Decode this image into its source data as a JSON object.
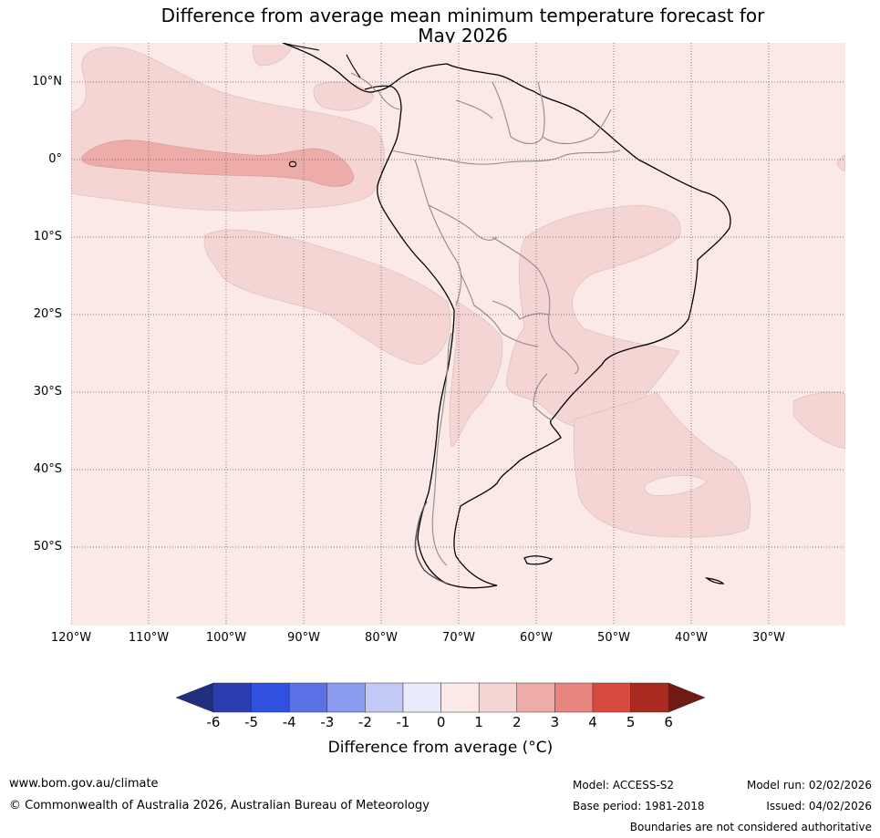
{
  "title": {
    "line1": "Difference from average mean minimum temperature forecast for",
    "line2": "May 2026"
  },
  "map": {
    "lat_labels": [
      "10°N",
      "0°",
      "10°S",
      "20°S",
      "30°S",
      "40°S",
      "50°S"
    ],
    "lon_labels": [
      "120°W",
      "110°W",
      "100°W",
      "90°W",
      "80°W",
      "70°W",
      "60°W",
      "50°W",
      "40°W",
      "30°W"
    ],
    "anomaly_bands": [
      {
        "range_c": "0 to 1",
        "color": "#fbe9e8"
      },
      {
        "range_c": "1 to 2",
        "color": "#f4d5d3"
      },
      {
        "range_c": "2 to 3",
        "color": "#eeaca9"
      }
    ]
  },
  "colorbar": {
    "ticks": [
      "-6",
      "-5",
      "-4",
      "-3",
      "-2",
      "-1",
      "0",
      "1",
      "2",
      "3",
      "4",
      "5",
      "6"
    ],
    "colors": [
      "#1f2e7d",
      "#2a3eb1",
      "#3050e0",
      "#5b72e6",
      "#8a9bef",
      "#c2c9f5",
      "#e9ebfa",
      "#fbe9e8",
      "#f4d5d3",
      "#eeaca9",
      "#e8857f",
      "#d94a3e",
      "#a82a21",
      "#701a15"
    ],
    "label": "Difference from average (°C)"
  },
  "footer": {
    "website": "www.bom.gov.au/climate",
    "copyright": "© Commonwealth of Australia 2026, Australian Bureau of Meteorology",
    "model": "Model: ACCESS-S2",
    "base_period": "Base period: 1981-2018",
    "model_run": "Model run: 02/02/2026",
    "issued": "Issued: 04/02/2026",
    "disclaimer": "Boundaries are not considered authoritative"
  }
}
